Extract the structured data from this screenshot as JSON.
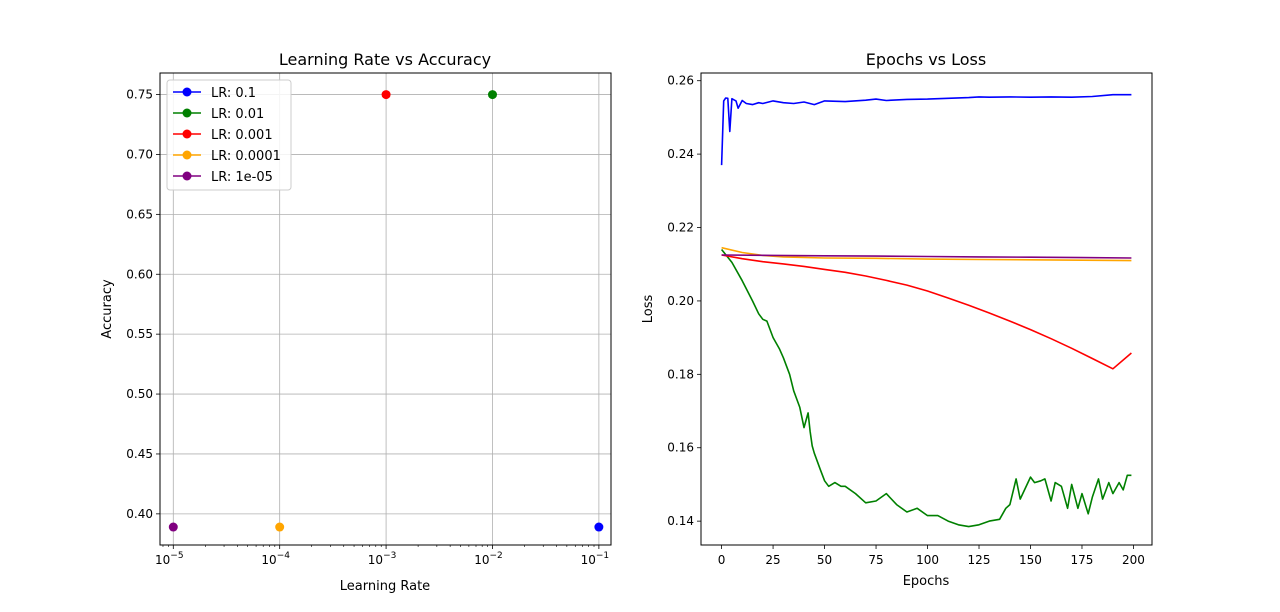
{
  "chart_data": [
    {
      "type": "scatter",
      "title": "Learning Rate vs Accuracy",
      "xlabel": "Learning Rate",
      "ylabel": "Accuracy",
      "xscale": "log",
      "xlim": [
        7.5e-06,
        0.13
      ],
      "ylim": [
        0.374,
        0.768
      ],
      "grid": true,
      "legend_position": "top-left",
      "x_ticks": [
        {
          "base": "10",
          "exp": "−5"
        },
        {
          "base": "10",
          "exp": "−4"
        },
        {
          "base": "10",
          "exp": "−3"
        },
        {
          "base": "10",
          "exp": "−2"
        },
        {
          "base": "10",
          "exp": "−1"
        }
      ],
      "y_ticks": [
        "0.40",
        "0.45",
        "0.50",
        "0.55",
        "0.60",
        "0.65",
        "0.70",
        "0.75"
      ],
      "series": [
        {
          "name": "LR: 0.1",
          "color": "#0000ff",
          "x": 0.1,
          "y": 0.389
        },
        {
          "name": "LR: 0.01",
          "color": "#008000",
          "x": 0.01,
          "y": 0.75
        },
        {
          "name": "LR: 0.001",
          "color": "#ff0000",
          "x": 0.001,
          "y": 0.75
        },
        {
          "name": "LR: 0.0001",
          "color": "#ffa500",
          "x": 0.0001,
          "y": 0.389
        },
        {
          "name": "LR: 1e-05",
          "color": "#800080",
          "x": 1e-05,
          "y": 0.389
        }
      ]
    },
    {
      "type": "line",
      "title": "Epochs vs Loss",
      "xlabel": "Epochs",
      "ylabel": "Loss",
      "xlim": [
        -10,
        209
      ],
      "ylim": [
        0.1335,
        0.2621
      ],
      "grid": false,
      "x_ticks": [
        "0",
        "25",
        "50",
        "75",
        "100",
        "125",
        "150",
        "175",
        "200"
      ],
      "y_ticks": [
        "0.14",
        "0.16",
        "0.18",
        "0.20",
        "0.22",
        "0.24",
        "0.26"
      ],
      "series": [
        {
          "color": "#0000ff",
          "x": [
            0,
            1,
            2,
            3,
            4,
            5,
            6,
            7,
            8,
            10,
            12,
            15,
            18,
            20,
            25,
            30,
            35,
            40,
            45,
            50,
            60,
            70,
            75,
            80,
            90,
            100,
            110,
            120,
            125,
            130,
            140,
            150,
            160,
            170,
            180,
            190,
            199
          ],
          "y": [
            0.237,
            0.2545,
            0.2553,
            0.2552,
            0.2462,
            0.2551,
            0.2548,
            0.2545,
            0.2525,
            0.2546,
            0.2538,
            0.2535,
            0.254,
            0.2538,
            0.2545,
            0.254,
            0.2538,
            0.2542,
            0.2535,
            0.2545,
            0.2543,
            0.2547,
            0.255,
            0.2546,
            0.2549,
            0.255,
            0.2552,
            0.2554,
            0.2556,
            0.2555,
            0.2556,
            0.2555,
            0.2556,
            0.2555,
            0.2557,
            0.2562,
            0.2562
          ]
        },
        {
          "color": "#008000",
          "x": [
            0,
            5,
            10,
            15,
            18,
            20,
            22,
            25,
            28,
            30,
            33,
            35,
            38,
            40,
            42,
            43,
            44,
            45,
            48,
            50,
            52,
            55,
            58,
            60,
            65,
            70,
            75,
            80,
            85,
            90,
            95,
            100,
            105,
            110,
            115,
            120,
            125,
            130,
            135,
            138,
            140,
            143,
            145,
            150,
            152,
            155,
            157,
            160,
            162,
            165,
            168,
            170,
            173,
            175,
            178,
            180,
            183,
            185,
            188,
            190,
            193,
            195,
            197,
            199
          ],
          "y": [
            0.214,
            0.2105,
            0.2055,
            0.2,
            0.1965,
            0.195,
            0.1945,
            0.19,
            0.187,
            0.1845,
            0.18,
            0.1755,
            0.171,
            0.1655,
            0.1695,
            0.1645,
            0.1605,
            0.1585,
            0.154,
            0.151,
            0.1495,
            0.1505,
            0.1495,
            0.1495,
            0.1475,
            0.145,
            0.1455,
            0.1475,
            0.1445,
            0.1425,
            0.1435,
            0.1415,
            0.1415,
            0.14,
            0.139,
            0.1385,
            0.139,
            0.14,
            0.1405,
            0.1435,
            0.1445,
            0.1515,
            0.146,
            0.152,
            0.1505,
            0.151,
            0.1515,
            0.1455,
            0.1505,
            0.1495,
            0.1435,
            0.15,
            0.1435,
            0.1475,
            0.142,
            0.1465,
            0.1515,
            0.146,
            0.1505,
            0.1475,
            0.1505,
            0.1485,
            0.1525,
            0.1525
          ]
        },
        {
          "color": "#ff0000",
          "x": [
            0,
            10,
            20,
            30,
            40,
            50,
            60,
            70,
            80,
            90,
            100,
            110,
            120,
            130,
            140,
            150,
            160,
            170,
            180,
            190,
            199
          ],
          "y": [
            0.2125,
            0.2115,
            0.2107,
            0.2101,
            0.2094,
            0.2086,
            0.2078,
            0.2068,
            0.2056,
            0.2043,
            0.2027,
            0.2008,
            0.1988,
            0.1967,
            0.1945,
            0.1922,
            0.1897,
            0.1871,
            0.1843,
            0.1815,
            0.1858
          ]
        },
        {
          "color": "#ffa500",
          "x": [
            0,
            10,
            20,
            30,
            50,
            75,
            100,
            125,
            150,
            175,
            199
          ],
          "y": [
            0.2145,
            0.2132,
            0.2124,
            0.212,
            0.2117,
            0.2116,
            0.2114,
            0.2113,
            0.2112,
            0.2111,
            0.211
          ]
        },
        {
          "color": "#800080",
          "x": [
            0,
            25,
            50,
            75,
            100,
            125,
            150,
            175,
            199
          ],
          "y": [
            0.2125,
            0.2124,
            0.2123,
            0.2122,
            0.2121,
            0.212,
            0.2119,
            0.2118,
            0.2117
          ]
        }
      ]
    }
  ]
}
